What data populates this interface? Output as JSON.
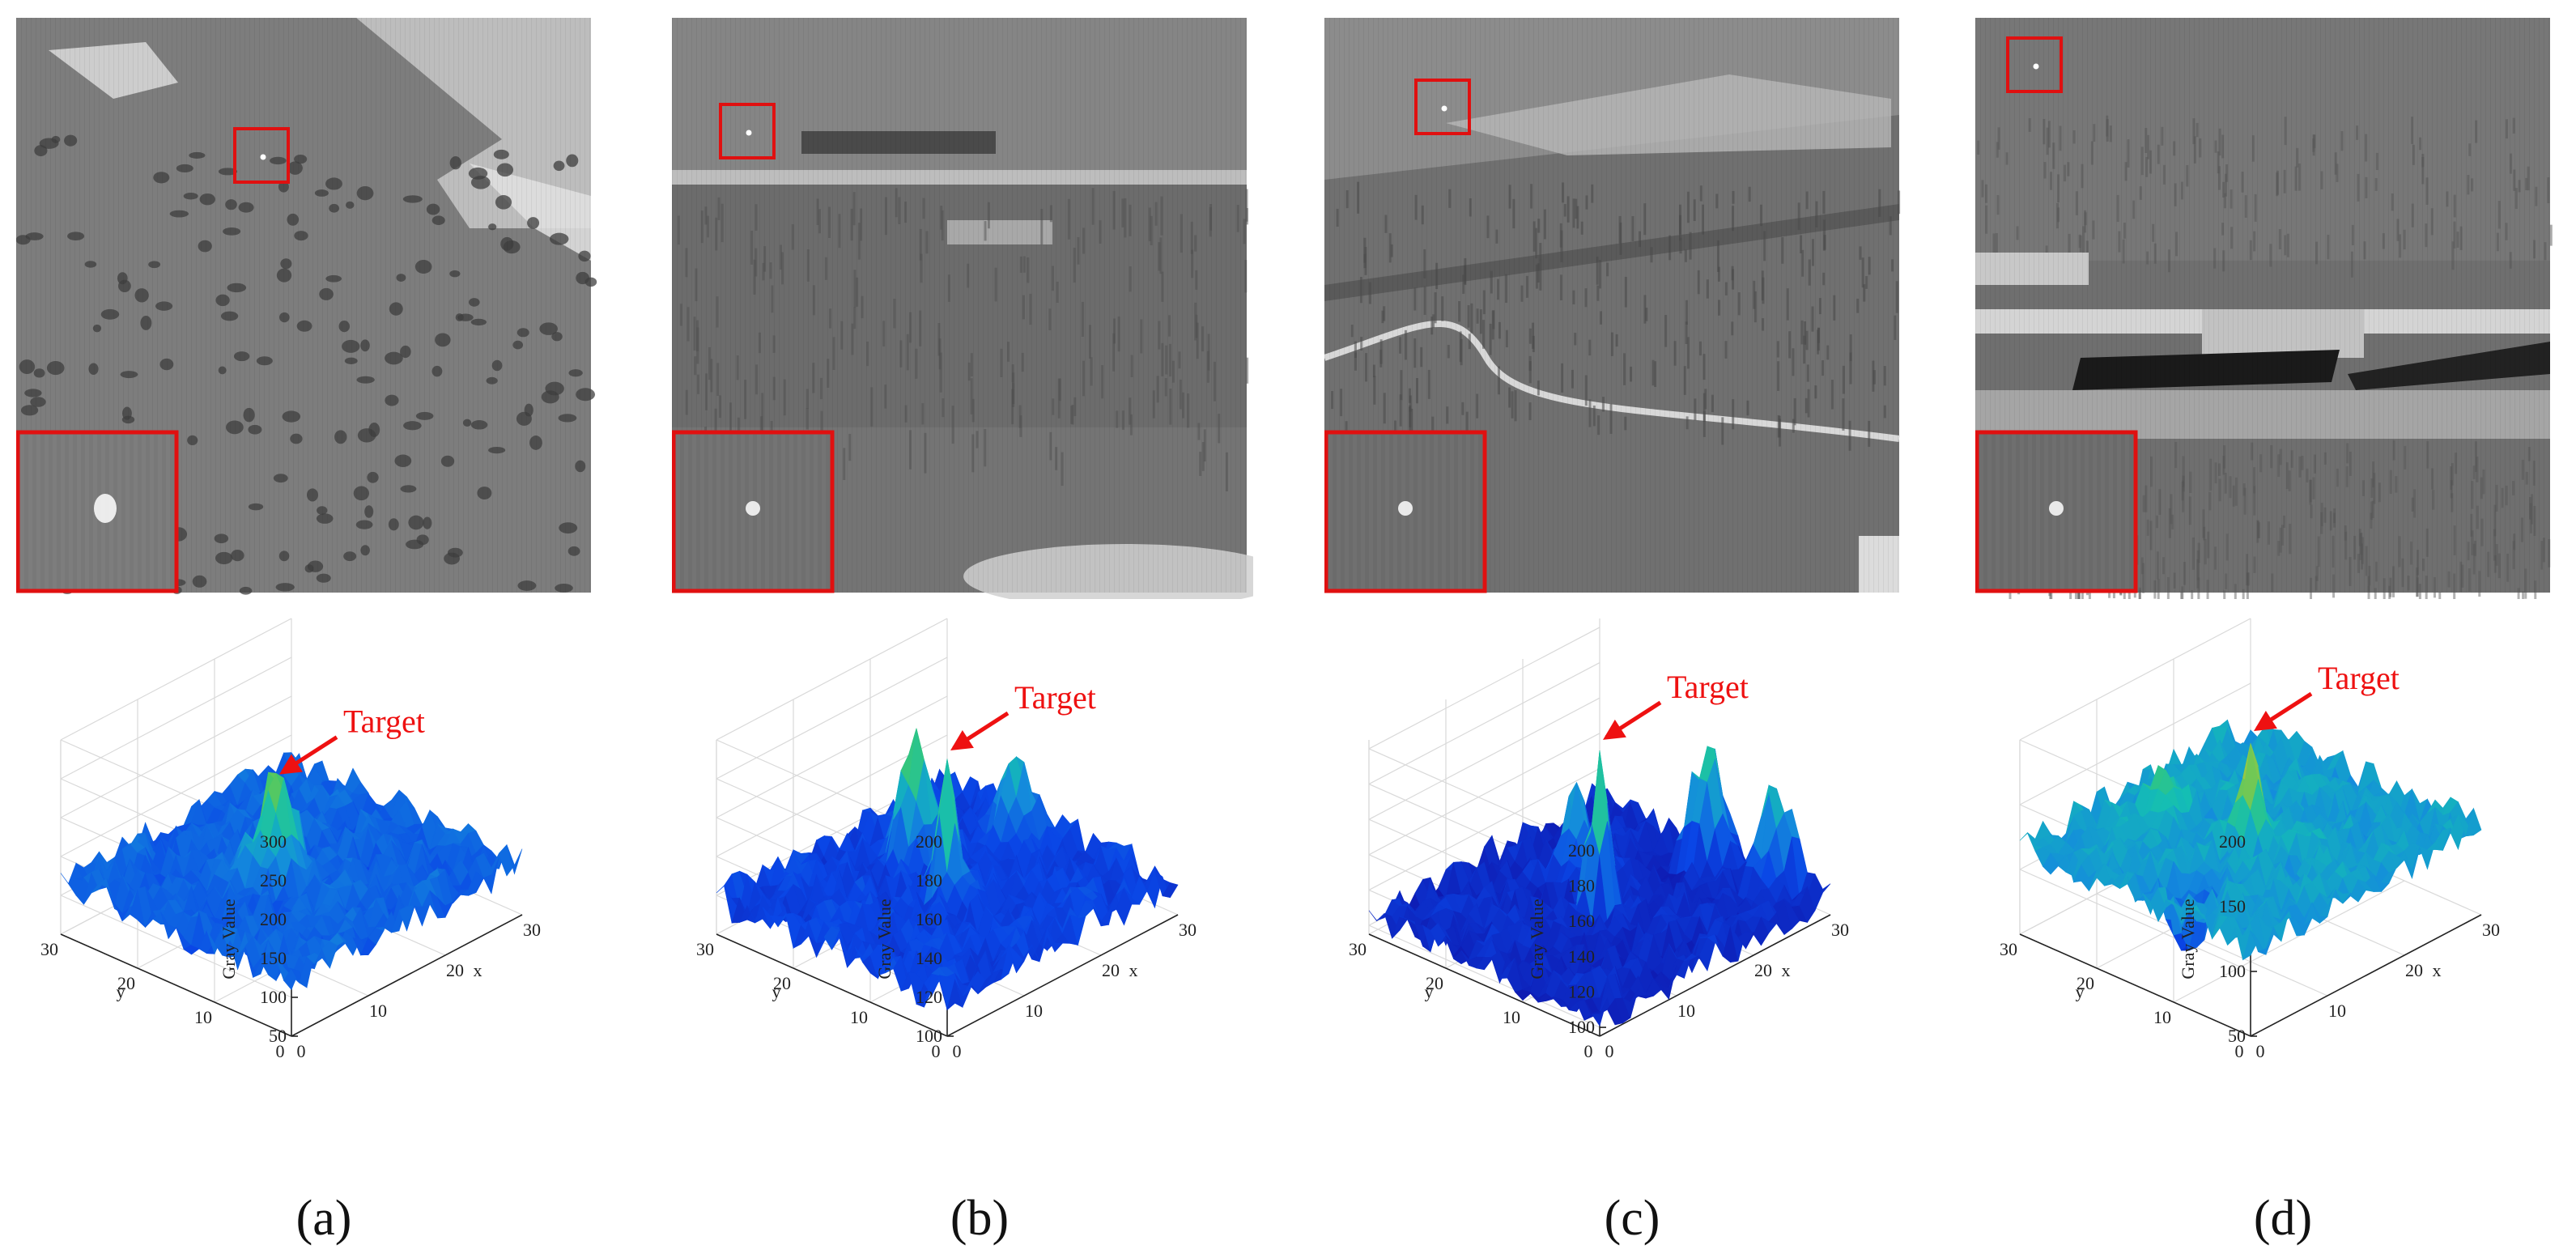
{
  "figure": {
    "panels": [
      {
        "id": "a",
        "caption": "(a)",
        "scene": "hillside",
        "chart_data": {
          "type": "surface3d",
          "zlabel": "Gray Value",
          "xlabel": "x",
          "ylabel": "y",
          "xticks": [
            "0",
            "10",
            "20",
            "30"
          ],
          "yticks": [
            "0",
            "10",
            "20",
            "30"
          ],
          "zticks": [
            "50",
            "100",
            "150",
            "200",
            "250",
            "300"
          ],
          "zlim": [
            50,
            300
          ],
          "xlim": [
            0,
            30
          ],
          "ylim": [
            0,
            30
          ],
          "base_level": 120,
          "peaks": [
            {
              "x": 14,
              "y": 16,
              "value": 245,
              "role": "target"
            }
          ],
          "annotation": "Target",
          "annotation_color": "#ee1111",
          "colormap": "parula"
        }
      },
      {
        "id": "b",
        "caption": "(b)",
        "scene": "buildings-road",
        "chart_data": {
          "type": "surface3d",
          "zlabel": "Gray Value",
          "xlabel": "x",
          "ylabel": "y",
          "xticks": [
            "0",
            "10",
            "20",
            "30"
          ],
          "yticks": [
            "0",
            "10",
            "20",
            "30"
          ],
          "zticks": [
            "100",
            "120",
            "140",
            "160",
            "180",
            "200"
          ],
          "zlim": [
            100,
            200
          ],
          "xlim": [
            0,
            30
          ],
          "ylim": [
            0,
            30
          ],
          "base_level": 118,
          "peaks": [
            {
              "x": 15,
              "y": 15,
              "value": 190,
              "role": "target"
            },
            {
              "x": 18,
              "y": 22,
              "value": 175,
              "role": "clutter"
            },
            {
              "x": 27,
              "y": 18,
              "value": 160,
              "role": "clutter"
            }
          ],
          "annotation": "Target",
          "annotation_color": "#ee1111",
          "colormap": "parula"
        }
      },
      {
        "id": "c",
        "caption": "(c)",
        "scene": "valley-road",
        "chart_data": {
          "type": "surface3d",
          "zlabel": "Gray Value",
          "xlabel": "x",
          "ylabel": "y",
          "xticks": [
            "0",
            "10",
            "20",
            "30"
          ],
          "yticks": [
            "0",
            "10",
            "20",
            "30"
          ],
          "zticks": [
            "100",
            "120",
            "140",
            "160",
            "180",
            "200"
          ],
          "zlim": [
            95,
            205
          ],
          "xlim": [
            0,
            30
          ],
          "ylim": [
            0,
            30
          ],
          "base_level": 105,
          "peaks": [
            {
              "x": 15,
              "y": 15,
              "value": 200,
              "role": "target"
            },
            {
              "x": 28,
              "y": 14,
              "value": 170,
              "role": "clutter"
            },
            {
              "x": 29,
              "y": 6,
              "value": 160,
              "role": "clutter"
            },
            {
              "x": 18,
              "y": 21,
              "value": 150,
              "role": "clutter"
            }
          ],
          "annotation": "Target",
          "annotation_color": "#ee1111",
          "colormap": "parula"
        }
      },
      {
        "id": "d",
        "caption": "(d)",
        "scene": "factory",
        "chart_data": {
          "type": "surface3d",
          "zlabel": "Gray Value",
          "xlabel": "x",
          "ylabel": "y",
          "xticks": [
            "0",
            "10",
            "20",
            "30"
          ],
          "yticks": [
            "0",
            "10",
            "20",
            "30"
          ],
          "zticks": [
            "50",
            "100",
            "150",
            "200"
          ],
          "zlim": [
            50,
            200
          ],
          "xlim": [
            0,
            30
          ],
          "ylim": [
            0,
            30
          ],
          "base_level": 118,
          "peaks": [
            {
              "x": 15,
              "y": 15,
              "value": 200,
              "role": "target"
            },
            {
              "x": 13,
              "y": 24,
              "value": 150,
              "role": "clutter"
            }
          ],
          "dips": [
            {
              "x": 5,
              "y": 13,
              "value": 60
            }
          ],
          "annotation": "Target",
          "annotation_color": "#ee1111",
          "colormap": "parula"
        }
      }
    ]
  }
}
